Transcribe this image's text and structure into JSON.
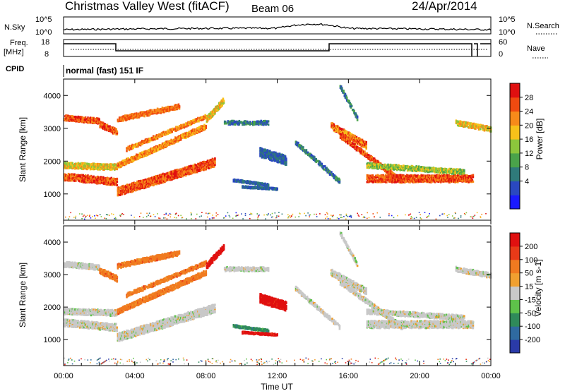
{
  "header": {
    "station": "Christmas Valley West (fitACF)",
    "beam": "Beam 06",
    "date": "24/Apr/2014"
  },
  "top_panels": {
    "nsky_label": "N.Sky",
    "nsky_ticks": [
      "10^5",
      "10^0"
    ],
    "nsearch_label": "N.Search",
    "nsearch_ticks": [
      "10^5",
      "10^0"
    ],
    "freq_label_1": "Freq.",
    "freq_label_2": "[MHz]",
    "freq_ticks": [
      "18",
      "8"
    ],
    "nave_label": "Nave",
    "nave_ticks": [
      "60",
      "0"
    ],
    "cpid_label": "CPID",
    "cpid_text": "normal (fast) 151 IF"
  },
  "chart_data": [
    {
      "type": "heatmap",
      "name": "power",
      "ylabel": "Slant Range [km]",
      "yticks": [
        "4000",
        "3000",
        "2000",
        "1000"
      ],
      "ylim": [
        200,
        4500
      ],
      "xlim": [
        0,
        24
      ],
      "colorbar_label": "Power [dB]",
      "colorbar_ticks": [
        "28",
        "24",
        "20",
        "16",
        "12",
        "8",
        "4"
      ],
      "colorbar_colors": [
        "#1a1aff",
        "#2a48c0",
        "#2f7a7a",
        "#4aa34a",
        "#8cc63c",
        "#f7c11a",
        "#f78a1a",
        "#f04a10",
        "#e01010"
      ]
    },
    {
      "type": "heatmap",
      "name": "velocity",
      "ylabel": "Slant Range [km]",
      "yticks": [
        "4000",
        "3000",
        "2000",
        "1000"
      ],
      "ylim": [
        200,
        4500
      ],
      "xlim": [
        0,
        24
      ],
      "xlabel": "Time UT",
      "xticks": [
        "00:00",
        "04:00",
        "08:00",
        "12:00",
        "16:00",
        "20:00",
        "00:00"
      ],
      "colorbar_label": "Velocity [m s-1]",
      "colorbar_ticks": [
        "200",
        "100",
        "50",
        "15",
        "-15",
        "-50",
        "-100",
        "-200"
      ],
      "colorbar_colors": [
        "#2a3aa8",
        "#2f6aa0",
        "#2f8a5a",
        "#5ec24a",
        "#c8c8c8",
        "#f0a030",
        "#f07a20",
        "#e83a18",
        "#e01010"
      ]
    }
  ]
}
